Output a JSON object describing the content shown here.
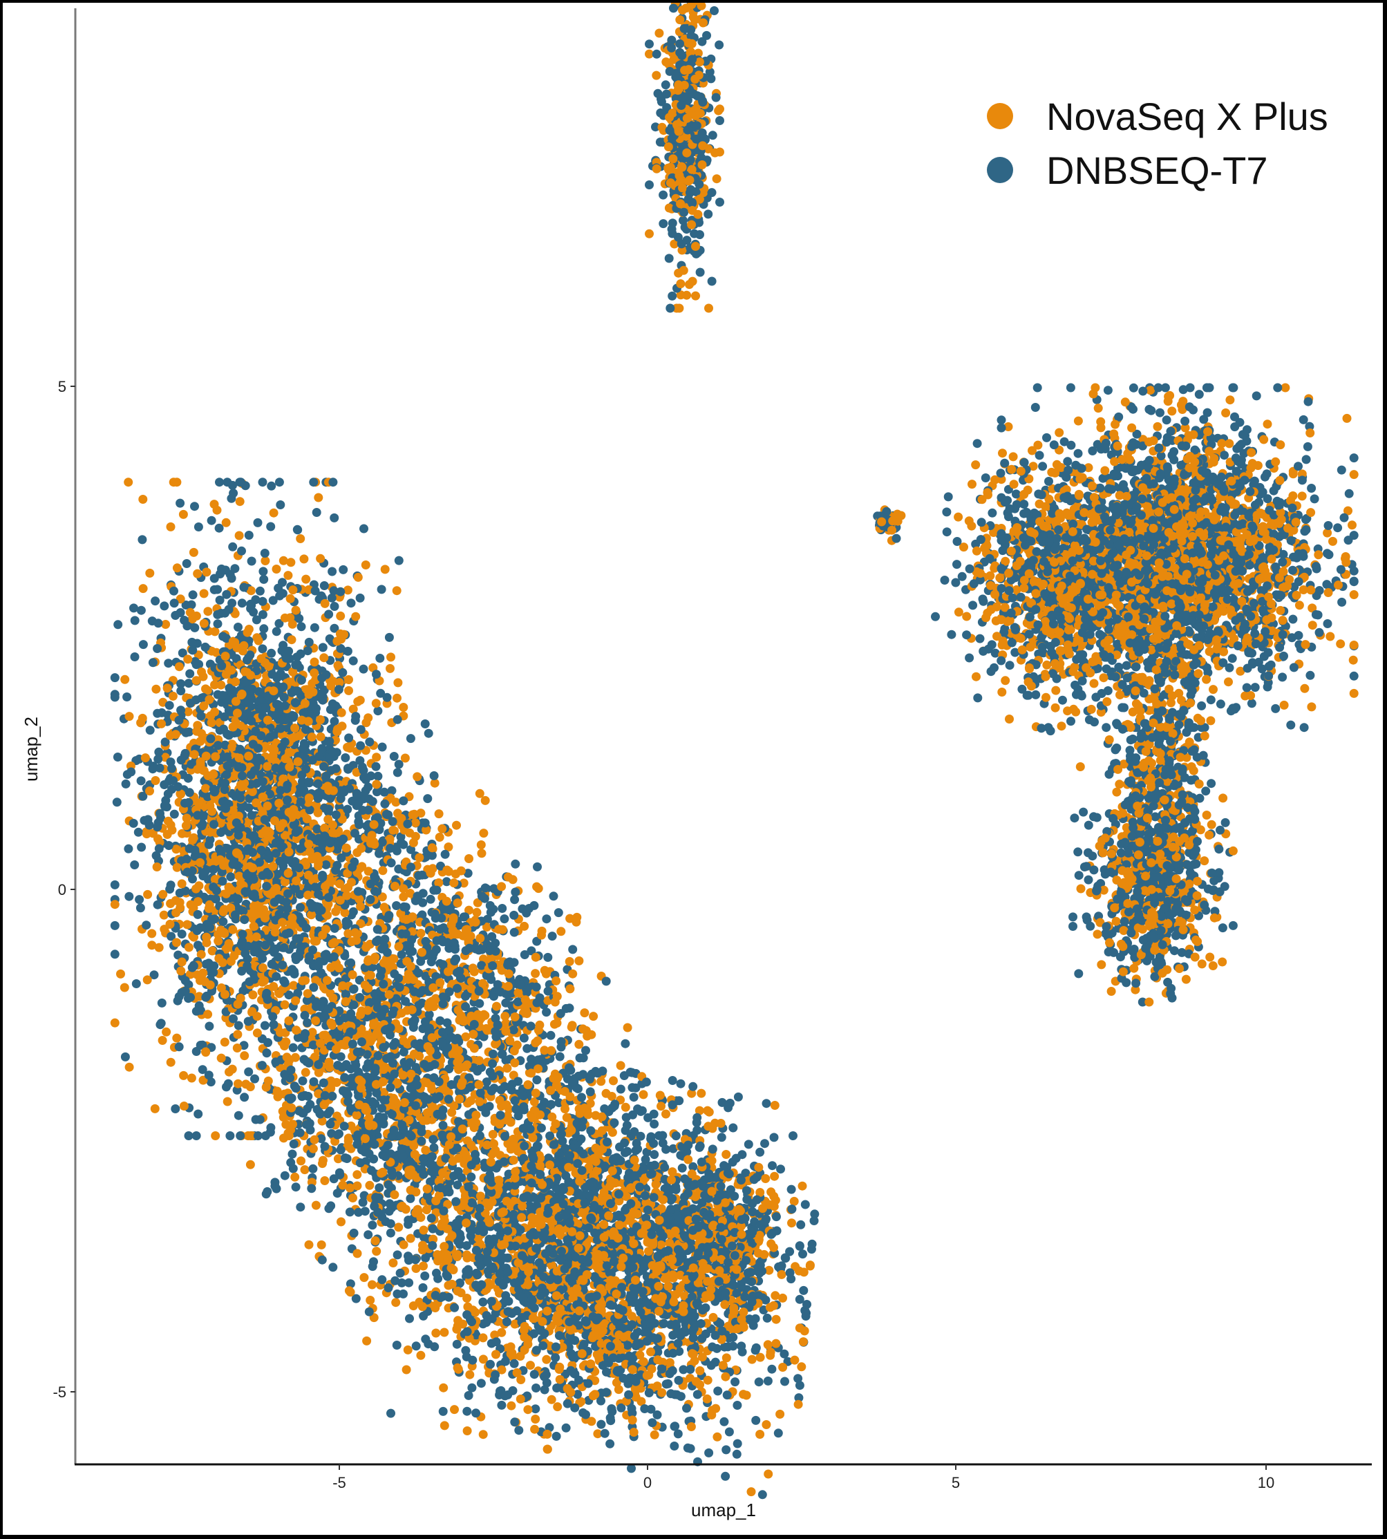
{
  "chart_data": {
    "type": "scatter",
    "title": "",
    "xlabel": "umap_1",
    "ylabel": "umap_2",
    "xlim": [
      -9.3,
      11.6
    ],
    "ylim": [
      -5.7,
      8.8
    ],
    "x_ticks": [
      -5,
      0,
      5,
      10
    ],
    "y_ticks": [
      -5,
      0,
      5
    ],
    "x_tick_labels": [
      "-5",
      "0",
      "5",
      "10"
    ],
    "y_tick_labels": [
      "-5",
      "0",
      "5"
    ],
    "grid": false,
    "legend_position": "top-right (inside)",
    "series": [
      {
        "name": "NovaSeq X Plus",
        "color": "#E8890C"
      },
      {
        "name": "DNBSEQ-T7",
        "color": "#2F6686"
      }
    ],
    "clusters": [
      {
        "name": "top-small-cluster",
        "cx": 0.6,
        "cy": 7.6,
        "sx": 0.22,
        "sy": 0.7,
        "n": 500,
        "angle": 0
      },
      {
        "name": "left-large-upper",
        "cx": -6.3,
        "cy": 0.8,
        "sx": 0.9,
        "sy": 1.25,
        "n": 2600,
        "angle": 0
      },
      {
        "name": "left-large-middle",
        "cx": -4.2,
        "cy": -1.9,
        "sx": 1.1,
        "sy": 0.8,
        "n": 1500,
        "angle": -35
      },
      {
        "name": "left-diagonal-stream",
        "cx": -2.8,
        "cy": -0.8,
        "sx": 1.6,
        "sy": 0.55,
        "n": 900,
        "angle": -38
      },
      {
        "name": "left-large-lower",
        "cx": -0.9,
        "cy": -3.7,
        "sx": 1.35,
        "sy": 0.75,
        "n": 2800,
        "angle": -8
      },
      {
        "name": "left-lower-tail",
        "cx": 1.3,
        "cy": -3.5,
        "sx": 0.45,
        "sy": 0.5,
        "n": 500,
        "angle": 0
      },
      {
        "name": "right-upper-main",
        "cx": 8.6,
        "cy": 3.3,
        "sx": 1.1,
        "sy": 0.65,
        "n": 2600,
        "angle": 0
      },
      {
        "name": "right-upper-left-lobe",
        "cx": 6.7,
        "cy": 3.0,
        "sx": 0.75,
        "sy": 0.55,
        "n": 900,
        "angle": -10
      },
      {
        "name": "right-bridge",
        "cx": 8.3,
        "cy": 1.3,
        "sx": 0.35,
        "sy": 0.55,
        "n": 350,
        "angle": 0
      },
      {
        "name": "right-lower-cluster",
        "cx": 8.2,
        "cy": 0.05,
        "sx": 0.5,
        "sy": 0.45,
        "n": 700,
        "angle": 0
      },
      {
        "name": "right-far-left-blob",
        "cx": 3.9,
        "cy": 3.65,
        "sx": 0.12,
        "sy": 0.08,
        "n": 40,
        "angle": 0
      }
    ],
    "novaseq_fraction": 0.42
  },
  "legend": {
    "items": [
      {
        "label": "NovaSeq X Plus",
        "color": "#E8890C"
      },
      {
        "label": "DNBSEQ-T7",
        "color": "#2F6686"
      }
    ]
  },
  "axes": {
    "x_title": "umap_1",
    "y_title": "umap_2"
  }
}
